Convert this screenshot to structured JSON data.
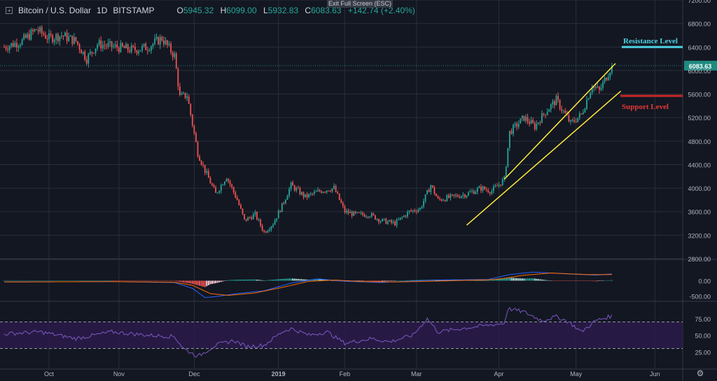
{
  "header": {
    "symbol": "Bitcoin / U.S. Dollar",
    "interval": "1D",
    "exchange": "BITSTAMP",
    "open_label": "O",
    "open": "5945.32",
    "high_label": "H",
    "high": "6099.00",
    "low_label": "L",
    "low": "5932.83",
    "close_label": "C",
    "close": "6083.63",
    "change": "+142.74 (+2.40%)",
    "exit_fullscreen": "Exit Full Screen (ESC)"
  },
  "colors": {
    "background": "#131722",
    "grid": "#2a2e39",
    "up": "#26a69a",
    "down": "#ef5350",
    "trendline": "#ffeb3b",
    "resistance": "#4dd0e1",
    "support": "#c62828",
    "macd_line": "#2962ff",
    "signal_line": "#ff6d00",
    "rsi_line": "#7e57c2",
    "rsi_band": "#2a1b4a"
  },
  "annotations": {
    "resistance": "Resistance Level",
    "support": "Support Level"
  },
  "chart_data": [
    {
      "type": "candlestick",
      "title": "Bitcoin / U.S. Dollar 1D BITSTAMP",
      "ylim": [
        2800,
        7200
      ],
      "yticks": [
        "7200.00",
        "6800.00",
        "6400.00",
        "6000.00",
        "5600.00",
        "5200.00",
        "4800.00",
        "4400.00",
        "4000.00",
        "3600.00",
        "3200.00",
        "2800.00"
      ],
      "x_labels": [
        "Oct",
        "Nov",
        "Dec",
        "2019",
        "Feb",
        "Mar",
        "Apr",
        "May",
        "Jun"
      ],
      "last_price_label": "6083.63",
      "last_price": 6083.63,
      "resistance_level": 6400,
      "support_level": 5570,
      "trend_upper": [
        [
          4150,
          6120
        ]
      ],
      "trend_lower": [
        [
          3370,
          5650
        ]
      ],
      "close_anchors": [
        [
          0,
          6400
        ],
        [
          10,
          6500
        ],
        [
          18,
          6700
        ],
        [
          25,
          6550
        ],
        [
          32,
          6600
        ],
        [
          40,
          6500
        ],
        [
          46,
          6200
        ],
        [
          52,
          6450
        ],
        [
          62,
          6400
        ],
        [
          72,
          6350
        ],
        [
          80,
          6400
        ],
        [
          88,
          6550
        ],
        [
          95,
          6250
        ],
        [
          98,
          5550
        ],
        [
          102,
          5580
        ],
        [
          108,
          4600
        ],
        [
          112,
          4300
        ],
        [
          118,
          3900
        ],
        [
          124,
          4200
        ],
        [
          130,
          3800
        ],
        [
          134,
          3450
        ],
        [
          140,
          3550
        ],
        [
          145,
          3250
        ],
        [
          150,
          3400
        ],
        [
          155,
          3700
        ],
        [
          160,
          4050
        ],
        [
          168,
          3850
        ],
        [
          176,
          3950
        ],
        [
          184,
          4000
        ],
        [
          190,
          3600
        ],
        [
          196,
          3550
        ],
        [
          204,
          3550
        ],
        [
          210,
          3450
        ],
        [
          218,
          3400
        ],
        [
          226,
          3600
        ],
        [
          232,
          3650
        ],
        [
          238,
          4050
        ],
        [
          242,
          3800
        ],
        [
          250,
          3850
        ],
        [
          258,
          3900
        ],
        [
          266,
          4000
        ],
        [
          272,
          3950
        ],
        [
          279,
          4150
        ],
        [
          282,
          4950
        ],
        [
          290,
          5200
        ],
        [
          296,
          5050
        ],
        [
          302,
          5300
        ],
        [
          308,
          5500
        ],
        [
          312,
          5300
        ],
        [
          316,
          5100
        ],
        [
          322,
          5250
        ],
        [
          328,
          5750
        ],
        [
          332,
          5650
        ],
        [
          336,
          5900
        ],
        [
          339,
          6083.63
        ]
      ]
    },
    {
      "type": "line",
      "title": "MACD",
      "ylim": [
        -650,
        650
      ],
      "yticks": [
        "0.00",
        "-500.00"
      ],
      "series": [
        {
          "role": "macd",
          "anchors": [
            [
              0,
              -40
            ],
            [
              60,
              -30
            ],
            [
              95,
              -60
            ],
            [
              105,
              -250
            ],
            [
              112,
              -550
            ],
            [
              118,
              -520
            ],
            [
              130,
              -420
            ],
            [
              145,
              -330
            ],
            [
              160,
              -80
            ],
            [
              175,
              60
            ],
            [
              190,
              -20
            ],
            [
              210,
              -60
            ],
            [
              240,
              20
            ],
            [
              270,
              40
            ],
            [
              282,
              200
            ],
            [
              295,
              280
            ],
            [
              315,
              220
            ],
            [
              330,
              180
            ],
            [
              339,
              220
            ]
          ]
        },
        {
          "role": "signal",
          "anchors": [
            [
              0,
              -40
            ],
            [
              60,
              -30
            ],
            [
              95,
              -50
            ],
            [
              105,
              -150
            ],
            [
              115,
              -420
            ],
            [
              125,
              -480
            ],
            [
              140,
              -400
            ],
            [
              155,
              -220
            ],
            [
              170,
              -20
            ],
            [
              185,
              20
            ],
            [
              200,
              -30
            ],
            [
              220,
              -40
            ],
            [
              250,
              0
            ],
            [
              275,
              40
            ],
            [
              290,
              180
            ],
            [
              305,
              250
            ],
            [
              325,
              200
            ],
            [
              339,
              200
            ]
          ]
        }
      ]
    },
    {
      "type": "line",
      "title": "RSI",
      "ylim": [
        0,
        100
      ],
      "yticks": [
        "75.00",
        "50.00",
        "25.00"
      ],
      "bands": [
        30,
        70
      ],
      "series": [
        {
          "role": "rsi",
          "anchors": [
            [
              0,
              52
            ],
            [
              20,
              55
            ],
            [
              40,
              45
            ],
            [
              60,
              55
            ],
            [
              80,
              50
            ],
            [
              95,
              48
            ],
            [
              100,
              30
            ],
            [
              108,
              18
            ],
            [
              118,
              35
            ],
            [
              128,
              42
            ],
            [
              135,
              33
            ],
            [
              145,
              35
            ],
            [
              155,
              55
            ],
            [
              160,
              60
            ],
            [
              170,
              50
            ],
            [
              180,
              55
            ],
            [
              190,
              38
            ],
            [
              205,
              45
            ],
            [
              215,
              40
            ],
            [
              228,
              50
            ],
            [
              236,
              75
            ],
            [
              242,
              55
            ],
            [
              255,
              60
            ],
            [
              270,
              65
            ],
            [
              279,
              68
            ],
            [
              281,
              90
            ],
            [
              290,
              85
            ],
            [
              300,
              72
            ],
            [
              308,
              78
            ],
            [
              315,
              70
            ],
            [
              322,
              55
            ],
            [
              330,
              72
            ],
            [
              339,
              79
            ]
          ]
        }
      ]
    }
  ]
}
